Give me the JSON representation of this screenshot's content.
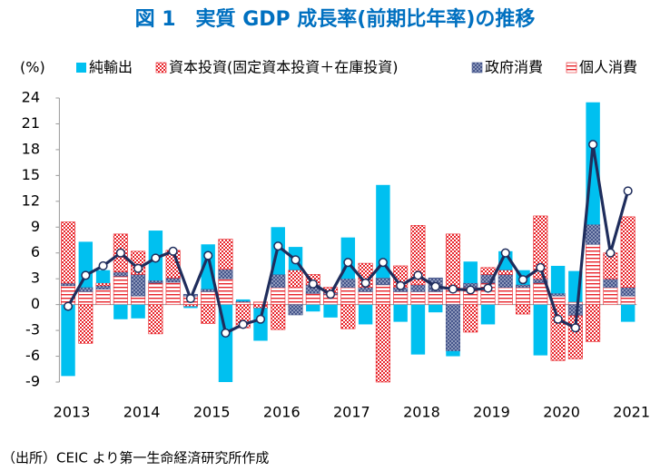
{
  "chart_data": {
    "type": "bar",
    "stacked": true,
    "title": "図 1　実質 GDP 成長率(前期比年率)の推移",
    "y_label": "(%)",
    "source": "（出所）CEIC より第一生命経済研究所作成",
    "categories": [
      "2013",
      null,
      null,
      null,
      "2014",
      null,
      null,
      null,
      "2015",
      null,
      null,
      null,
      "2016",
      null,
      null,
      null,
      "2017",
      null,
      null,
      null,
      "2018",
      null,
      null,
      null,
      "2019",
      null,
      null,
      null,
      "2020",
      null,
      null,
      null,
      "2021"
    ],
    "ylim": [
      -9,
      24
    ],
    "yticks": [
      -9,
      -6,
      -3,
      0,
      3,
      6,
      9,
      12,
      15,
      18,
      21,
      24
    ],
    "series": [
      {
        "name": "個人消費",
        "color": "#e8242a",
        "pattern": "hstripe",
        "values": [
          2.2,
          1.5,
          1.8,
          3.3,
          1.0,
          2.5,
          2.6,
          1.0,
          1.5,
          3.0,
          0.3,
          0.3,
          2.0,
          2.0,
          1.3,
          1.2,
          2.0,
          1.5,
          2.3,
          1.5,
          1.5,
          1.5,
          2.0,
          2.0,
          2.5,
          2.0,
          2.0,
          2.5,
          1.0,
          0.3,
          7.0,
          2.0,
          1.0
        ]
      },
      {
        "name": "政府消費",
        "color": "#44548a",
        "pattern": "crosshatch",
        "values": [
          0.3,
          0.5,
          0.4,
          0.5,
          2.5,
          0.3,
          0.5,
          0.2,
          0.3,
          1.1,
          0.1,
          0.0,
          1.5,
          -1.2,
          1.0,
          0.2,
          1.0,
          0.5,
          0.8,
          0.5,
          0.8,
          1.6,
          -5.4,
          0.5,
          1.0,
          1.5,
          0.3,
          0.5,
          0.3,
          -1.3,
          2.3,
          1.0,
          1.0
        ]
      },
      {
        "name": "資本投資(固定資本投資＋在庫投資)",
        "color": "#e8242a",
        "pattern": "checker",
        "values": [
          7.1,
          -4.5,
          0.3,
          4.4,
          2.7,
          -3.4,
          3.2,
          -0.2,
          -2.2,
          3.5,
          -2.7,
          -0.4,
          -2.9,
          2.0,
          1.2,
          0.6,
          -2.8,
          2.8,
          -9.0,
          2.5,
          6.9,
          0.0,
          6.2,
          -3.2,
          0.8,
          0.5,
          -1.1,
          7.3,
          -6.5,
          -5.0,
          -4.3,
          3.0,
          8.2
        ]
      },
      {
        "name": "純輸出",
        "color": "#00c0f0",
        "pattern": "solid",
        "values": [
          -8.3,
          5.3,
          1.5,
          -1.7,
          -1.6,
          5.8,
          0.0,
          -0.2,
          5.2,
          -9.0,
          0.2,
          -3.8,
          5.5,
          2.7,
          -0.8,
          -1.5,
          4.8,
          -2.3,
          10.8,
          -2.0,
          -5.8,
          -0.9,
          -0.6,
          2.5,
          -2.3,
          2.2,
          1.7,
          -5.9,
          3.2,
          3.6,
          14.2,
          0.0,
          -2.0
        ]
      },
      {
        "type": "line",
        "color": "#1f2d5c",
        "values": [
          -0.2,
          3.4,
          4.5,
          6.0,
          4.2,
          5.4,
          6.2,
          0.7,
          5.7,
          -3.3,
          -2.3,
          -1.7,
          6.8,
          5.2,
          2.4,
          1.2,
          4.9,
          2.5,
          4.9,
          2.2,
          3.4,
          2.1,
          1.8,
          1.7,
          1.9,
          6.0,
          2.9,
          4.3,
          -1.7,
          -2.7,
          18.6,
          6.0,
          13.2
        ]
      }
    ],
    "legend_order": [
      3,
      2,
      1,
      0
    ]
  }
}
